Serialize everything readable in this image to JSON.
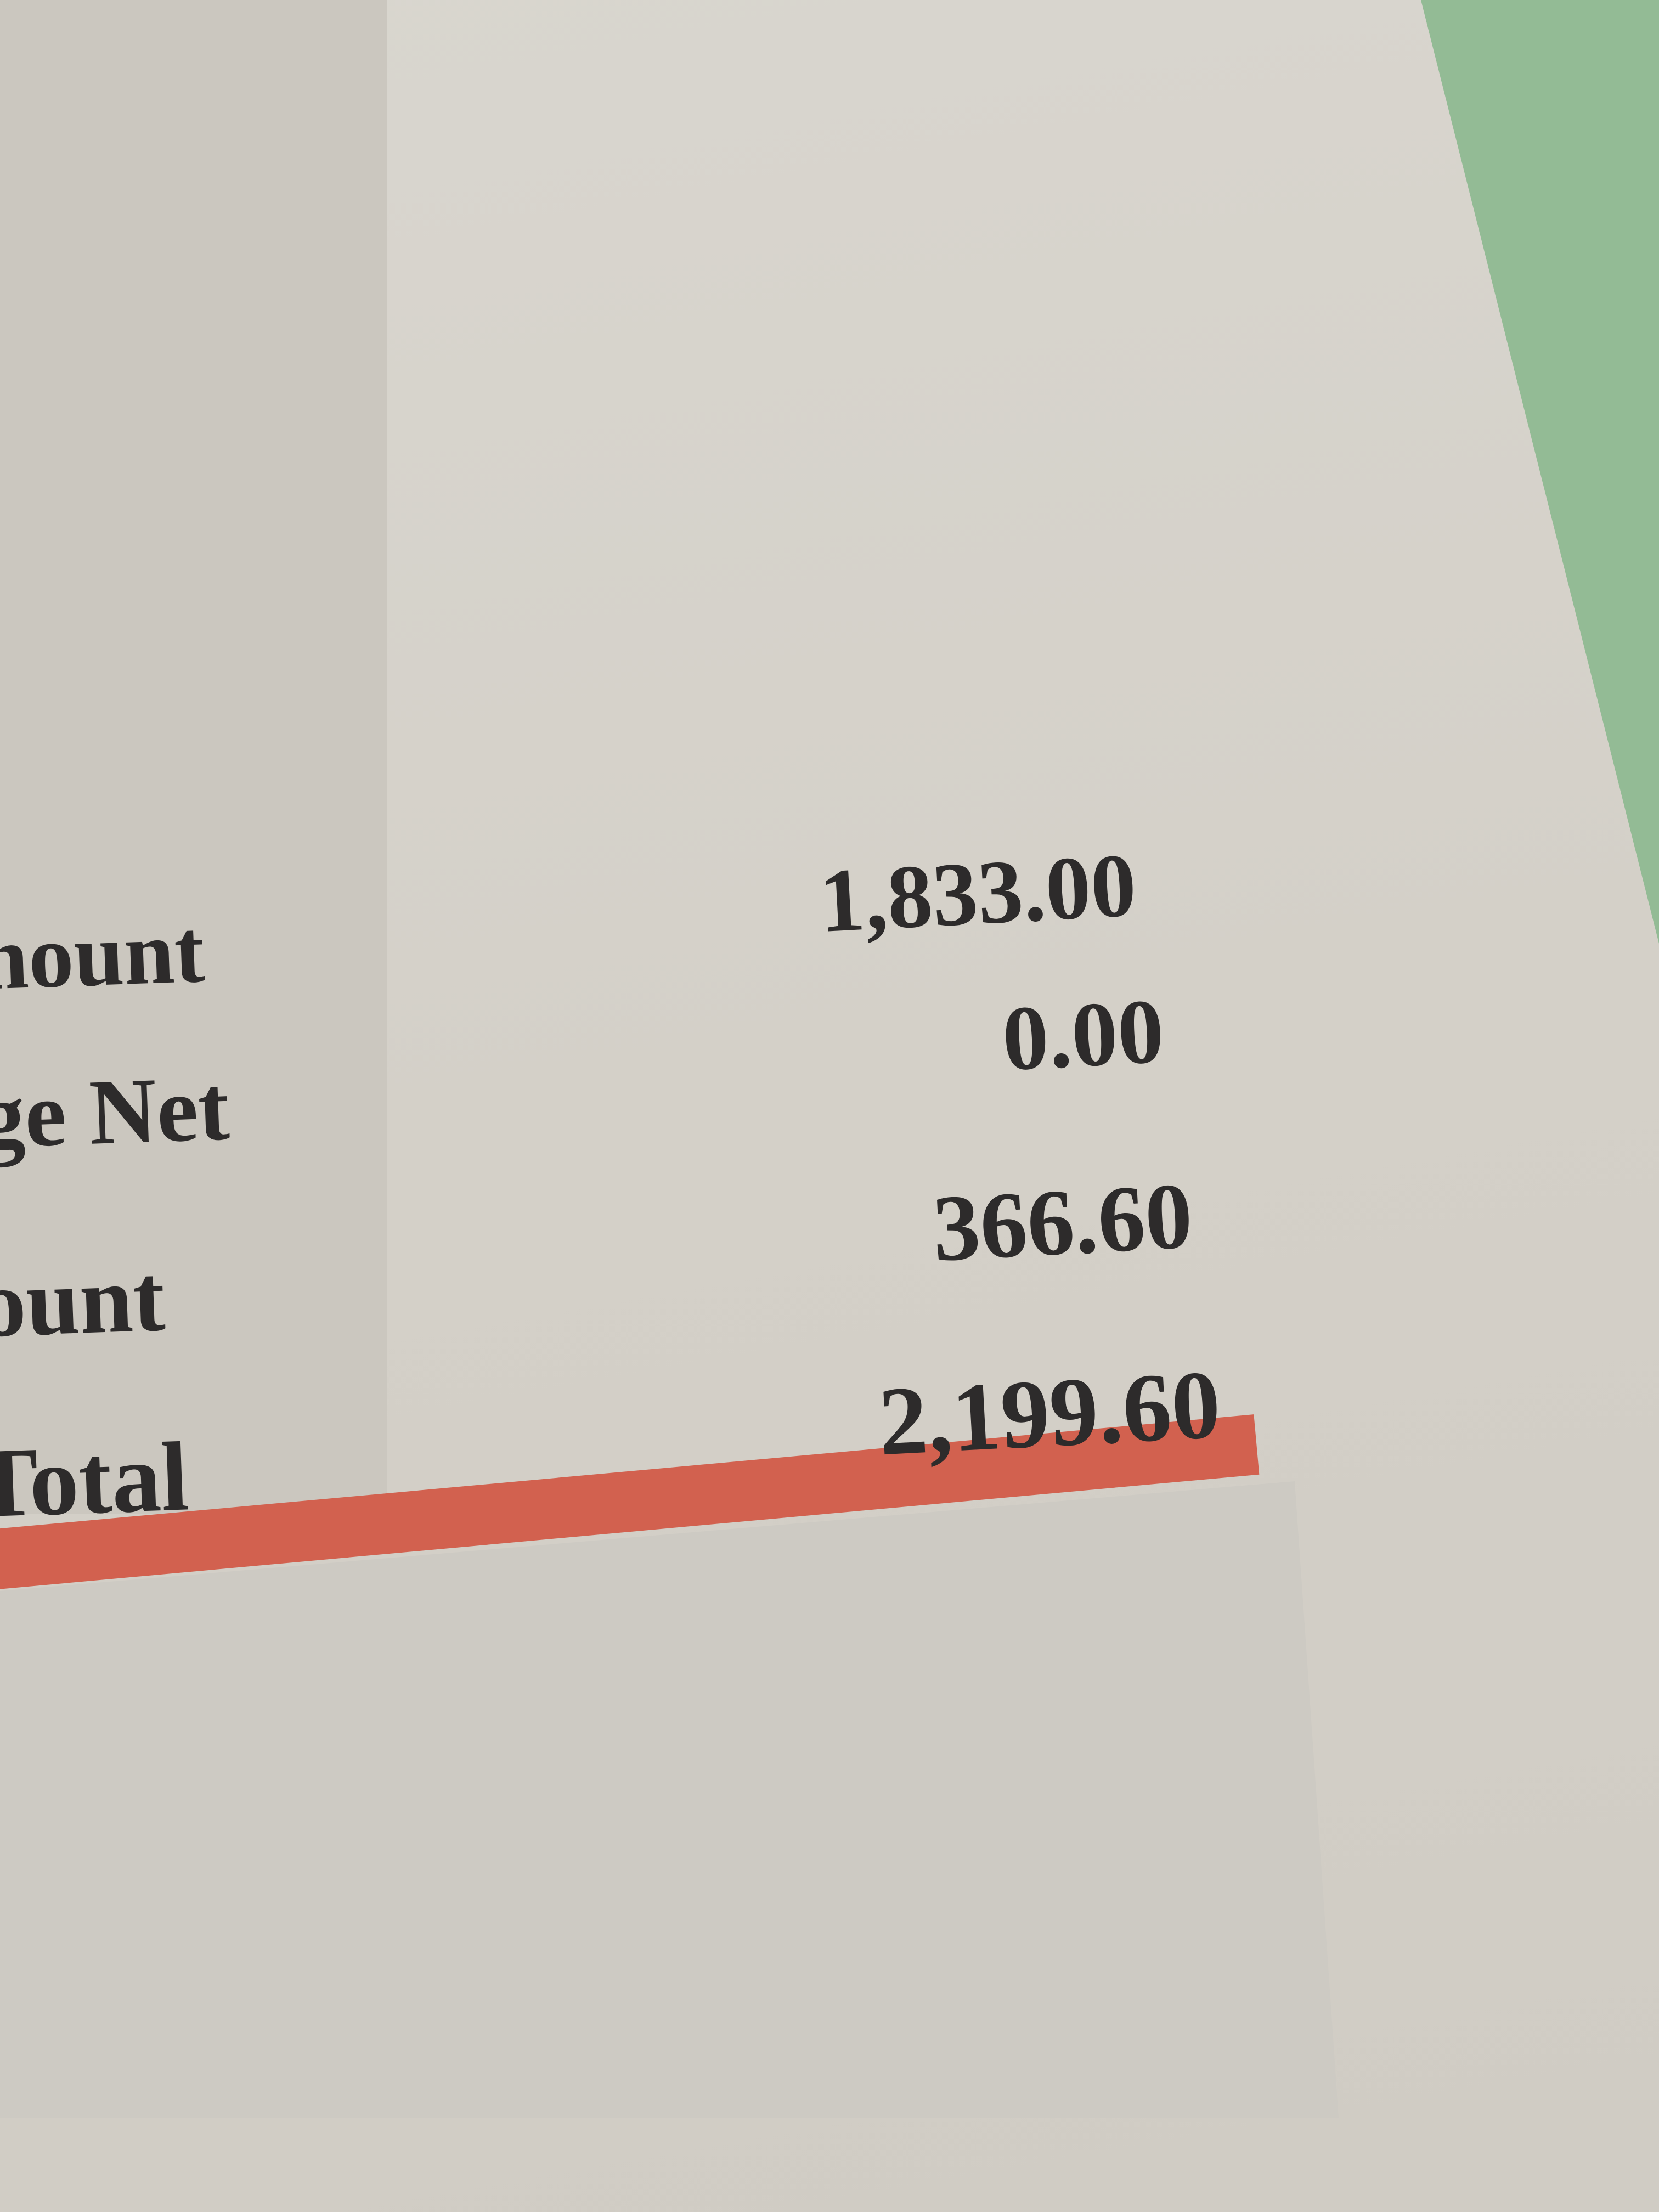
{
  "summary": {
    "rows": [
      {
        "label": "nount",
        "value": "1,833.00"
      },
      {
        "label": "ge Net",
        "value": "0.00"
      },
      {
        "label": "ount",
        "value": "366.60"
      },
      {
        "label": "Total",
        "value": "2,199.60"
      }
    ]
  },
  "colors": {
    "accent_bar": "#d2614f",
    "paper": "#d5d1c9",
    "surface": "#93bb95",
    "text": "#2d2b2b"
  }
}
